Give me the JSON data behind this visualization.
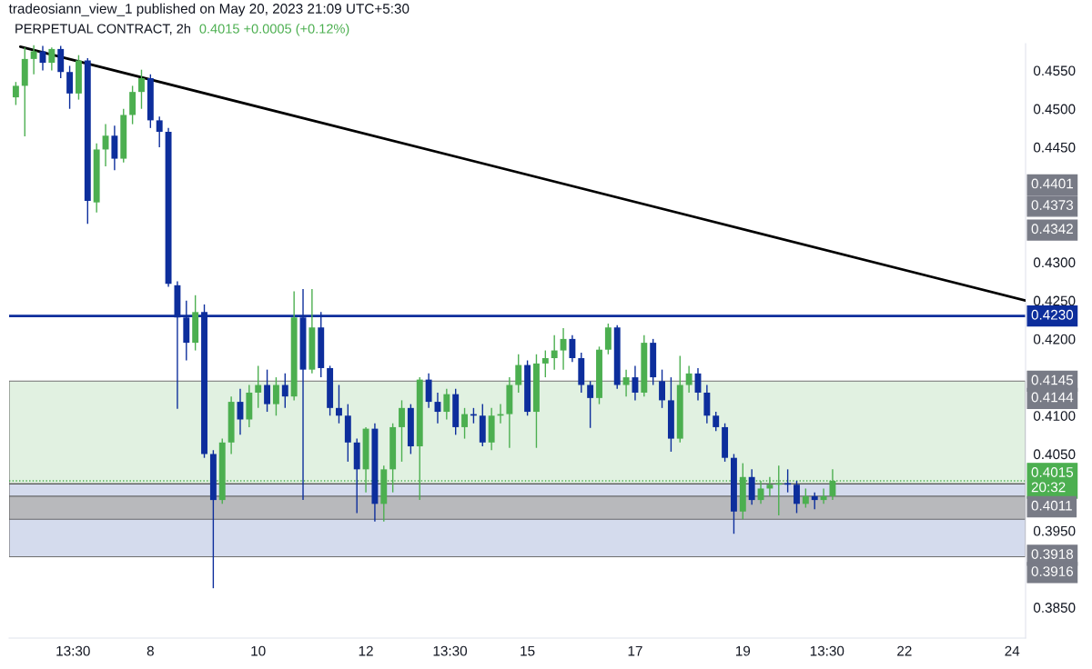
{
  "chart_data": {
    "type": "candlestick",
    "title": "PERPETUAL CONTRACT, 2h",
    "subtitle": "tradeosiann_view_1 published on May 20, 2023 21:09 UTC+5:30",
    "x": [
      "2023-05-05T12:00",
      "2023-05-05T16:00",
      "2023-05-05T20:00",
      "2023-05-06T00:00",
      "2023-05-06T04:00",
      "2023-05-06T08:00",
      "2023-05-06T12:00",
      "2023-05-06T16:00",
      "2023-05-06T20:00",
      "2023-05-07T00:00",
      "2023-05-07T04:00",
      "2023-05-07T08:00",
      "2023-05-07T12:00",
      "2023-05-07T16:00",
      "2023-05-07T20:00",
      "2023-05-08T00:00",
      "2023-05-08T04:00",
      "2023-05-08T08:00",
      "2023-05-08T12:00",
      "2023-05-08T16:00",
      "2023-05-08T20:00",
      "2023-05-09T00:00",
      "2023-05-09T04:00",
      "2023-05-09T08:00",
      "2023-05-09T12:00",
      "2023-05-09T16:00",
      "2023-05-09T20:00",
      "2023-05-10T00:00",
      "2023-05-10T04:00",
      "2023-05-10T08:00",
      "2023-05-10T12:00",
      "2023-05-10T16:00",
      "2023-05-10T20:00",
      "2023-05-11T00:00",
      "2023-05-11T04:00",
      "2023-05-11T08:00",
      "2023-05-11T12:00",
      "2023-05-11T16:00",
      "2023-05-11T20:00",
      "2023-05-12T00:00",
      "2023-05-12T04:00",
      "2023-05-12T08:00",
      "2023-05-12T12:00",
      "2023-05-12T16:00",
      "2023-05-12T20:00",
      "2023-05-13T00:00",
      "2023-05-13T04:00",
      "2023-05-13T08:00",
      "2023-05-13T12:00",
      "2023-05-13T16:00",
      "2023-05-13T20:00",
      "2023-05-14T00:00",
      "2023-05-14T04:00",
      "2023-05-14T08:00",
      "2023-05-14T12:00",
      "2023-05-14T16:00",
      "2023-05-14T20:00",
      "2023-05-15T00:00",
      "2023-05-15T04:00",
      "2023-05-15T08:00",
      "2023-05-15T12:00",
      "2023-05-15T16:00",
      "2023-05-15T20:00",
      "2023-05-16T00:00",
      "2023-05-16T04:00",
      "2023-05-16T08:00",
      "2023-05-16T12:00",
      "2023-05-16T16:00",
      "2023-05-16T20:00",
      "2023-05-17T00:00",
      "2023-05-17T04:00",
      "2023-05-17T08:00",
      "2023-05-17T12:00",
      "2023-05-17T16:00",
      "2023-05-17T20:00",
      "2023-05-18T00:00",
      "2023-05-18T04:00",
      "2023-05-18T08:00",
      "2023-05-18T12:00",
      "2023-05-18T16:00",
      "2023-05-18T20:00",
      "2023-05-19T00:00",
      "2023-05-19T04:00",
      "2023-05-19T08:00",
      "2023-05-19T12:00",
      "2023-05-19T16:00",
      "2023-05-19T20:00",
      "2023-05-20T00:00",
      "2023-05-20T04:00",
      "2023-05-20T08:00",
      "2023-05-20T12:00",
      "2023-05-20T16:00"
    ],
    "ohlc": [
      [
        0.4515,
        0.4535,
        0.4505,
        0.453
      ],
      [
        0.453,
        0.458,
        0.4464,
        0.4565
      ],
      [
        0.4565,
        0.4583,
        0.4545,
        0.4575
      ],
      [
        0.4575,
        0.4582,
        0.455,
        0.456
      ],
      [
        0.456,
        0.458,
        0.455,
        0.4578
      ],
      [
        0.4578,
        0.4582,
        0.454,
        0.4548
      ],
      [
        0.4548,
        0.4556,
        0.45,
        0.452
      ],
      [
        0.452,
        0.457,
        0.4512,
        0.4563
      ],
      [
        0.4563,
        0.4566,
        0.435,
        0.438
      ],
      [
        0.4378,
        0.4455,
        0.4365,
        0.4447
      ],
      [
        0.4447,
        0.448,
        0.4425,
        0.4465
      ],
      [
        0.4465,
        0.4478,
        0.442,
        0.4435
      ],
      [
        0.4435,
        0.45,
        0.443,
        0.4492
      ],
      [
        0.4492,
        0.453,
        0.448,
        0.4522
      ],
      [
        0.4522,
        0.4551,
        0.45,
        0.454
      ],
      [
        0.454,
        0.4545,
        0.4475,
        0.4485
      ],
      [
        0.4485,
        0.449,
        0.445,
        0.447
      ],
      [
        0.447,
        0.4475,
        0.4268,
        0.4272
      ],
      [
        0.427,
        0.4275,
        0.4109,
        0.4228
      ],
      [
        0.4228,
        0.425,
        0.4172,
        0.4195
      ],
      [
        0.4195,
        0.4257,
        0.4185,
        0.4235
      ],
      [
        0.4235,
        0.4245,
        0.4045,
        0.405
      ],
      [
        0.405,
        0.4055,
        0.3875,
        0.399
      ],
      [
        0.399,
        0.407,
        0.3985,
        0.4065
      ],
      [
        0.4065,
        0.4125,
        0.405,
        0.4118
      ],
      [
        0.4118,
        0.4135,
        0.4075,
        0.4095
      ],
      [
        0.4095,
        0.414,
        0.4085,
        0.413
      ],
      [
        0.413,
        0.4165,
        0.411,
        0.414
      ],
      [
        0.414,
        0.416,
        0.4105,
        0.4115
      ],
      [
        0.4115,
        0.415,
        0.41,
        0.414
      ],
      [
        0.414,
        0.4155,
        0.411,
        0.4125
      ],
      [
        0.4125,
        0.4262,
        0.412,
        0.4228
      ],
      [
        0.4228,
        0.4265,
        0.399,
        0.416
      ],
      [
        0.416,
        0.4265,
        0.4155,
        0.4215
      ],
      [
        0.4215,
        0.4235,
        0.415,
        0.4162
      ],
      [
        0.4162,
        0.4165,
        0.41,
        0.411
      ],
      [
        0.411,
        0.414,
        0.409,
        0.41
      ],
      [
        0.41,
        0.4115,
        0.404,
        0.4065
      ],
      [
        0.4065,
        0.407,
        0.3973,
        0.403
      ],
      [
        0.403,
        0.4085,
        0.4,
        0.4083
      ],
      [
        0.4083,
        0.409,
        0.3962,
        0.3985
      ],
      [
        0.3985,
        0.4035,
        0.3962,
        0.403
      ],
      [
        0.403,
        0.409,
        0.4,
        0.4085
      ],
      [
        0.4085,
        0.412,
        0.404,
        0.411
      ],
      [
        0.411,
        0.4115,
        0.405,
        0.406
      ],
      [
        0.406,
        0.415,
        0.399,
        0.4147
      ],
      [
        0.4147,
        0.4155,
        0.411,
        0.4118
      ],
      [
        0.4118,
        0.413,
        0.409,
        0.4105
      ],
      [
        0.4105,
        0.4135,
        0.4095,
        0.4128
      ],
      [
        0.4128,
        0.4135,
        0.4075,
        0.4085
      ],
      [
        0.4085,
        0.411,
        0.407,
        0.4102
      ],
      [
        0.4102,
        0.411,
        0.409,
        0.41
      ],
      [
        0.41,
        0.4115,
        0.406,
        0.4065
      ],
      [
        0.4065,
        0.411,
        0.4055,
        0.41
      ],
      [
        0.41,
        0.4115,
        0.409,
        0.4102
      ],
      [
        0.4102,
        0.415,
        0.4058,
        0.414
      ],
      [
        0.414,
        0.418,
        0.413,
        0.4166
      ],
      [
        0.4166,
        0.4172,
        0.41,
        0.4105
      ],
      [
        0.4105,
        0.418,
        0.4058,
        0.4168
      ],
      [
        0.4168,
        0.4185,
        0.415,
        0.4175
      ],
      [
        0.4175,
        0.4205,
        0.416,
        0.4185
      ],
      [
        0.4185,
        0.4214,
        0.416,
        0.42
      ],
      [
        0.42,
        0.4205,
        0.417,
        0.4175
      ],
      [
        0.4175,
        0.4182,
        0.413,
        0.414
      ],
      [
        0.414,
        0.4145,
        0.4084,
        0.4123
      ],
      [
        0.4123,
        0.419,
        0.4115,
        0.4186
      ],
      [
        0.4186,
        0.422,
        0.418,
        0.4215
      ],
      [
        0.4215,
        0.4218,
        0.4135,
        0.414
      ],
      [
        0.414,
        0.416,
        0.4125,
        0.415
      ],
      [
        0.415,
        0.4165,
        0.412,
        0.413
      ],
      [
        0.413,
        0.4205,
        0.4125,
        0.4195
      ],
      [
        0.4195,
        0.42,
        0.414,
        0.415
      ],
      [
        0.4145,
        0.416,
        0.411,
        0.412
      ],
      [
        0.412,
        0.415,
        0.4053,
        0.407
      ],
      [
        0.407,
        0.4178,
        0.4065,
        0.414
      ],
      [
        0.414,
        0.4165,
        0.413,
        0.4155
      ],
      [
        0.4155,
        0.4162,
        0.412,
        0.413
      ],
      [
        0.413,
        0.414,
        0.409,
        0.41
      ],
      [
        0.41,
        0.4105,
        0.408,
        0.4085
      ],
      [
        0.4085,
        0.409,
        0.404,
        0.4045
      ],
      [
        0.4045,
        0.405,
        0.3946,
        0.3975
      ],
      [
        0.3975,
        0.4038,
        0.3965,
        0.402
      ],
      [
        0.402,
        0.403,
        0.3984,
        0.399
      ],
      [
        0.399,
        0.4015,
        0.3985,
        0.4005
      ],
      [
        0.4005,
        0.402,
        0.3995,
        0.401
      ],
      [
        0.401,
        0.4035,
        0.397,
        0.4012
      ],
      [
        0.4012,
        0.403,
        0.4,
        0.401
      ],
      [
        0.401,
        0.4015,
        0.3973,
        0.3985
      ],
      [
        0.3985,
        0.4005,
        0.398,
        0.3995
      ],
      [
        0.3995,
        0.4,
        0.3978,
        0.399
      ],
      [
        0.399,
        0.4005,
        0.3985,
        0.3995
      ],
      [
        0.3995,
        0.403,
        0.399,
        0.4015
      ]
    ],
    "colors": [
      "#4caf50",
      "#4caf50",
      "#4caf50",
      "#0d2e9c",
      "#4caf50",
      "#0d2e9c",
      "#0d2e9c",
      "#4caf50",
      "#0d2e9c",
      "#4caf50",
      "#4caf50",
      "#0d2e9c",
      "#4caf50",
      "#4caf50",
      "#4caf50",
      "#0d2e9c",
      "#0d2e9c",
      "#0d2e9c",
      "#0d2e9c",
      "#0d2e9c",
      "#4caf50",
      "#0d2e9c",
      "#0d2e9c",
      "#4caf50",
      "#4caf50",
      "#0d2e9c",
      "#4caf50",
      "#4caf50",
      "#0d2e9c",
      "#4caf50",
      "#0d2e9c",
      "#4caf50",
      "#0d2e9c",
      "#4caf50",
      "#0d2e9c",
      "#0d2e9c",
      "#0d2e9c",
      "#0d2e9c",
      "#0d2e9c",
      "#4caf50",
      "#0d2e9c",
      "#4caf50",
      "#4caf50",
      "#4caf50",
      "#0d2e9c",
      "#4caf50",
      "#0d2e9c",
      "#0d2e9c",
      "#4caf50",
      "#0d2e9c",
      "#4caf50",
      "#0d2e9c",
      "#0d2e9c",
      "#4caf50",
      "#4caf50",
      "#4caf50",
      "#4caf50",
      "#0d2e9c",
      "#4caf50",
      "#4caf50",
      "#4caf50",
      "#4caf50",
      "#0d2e9c",
      "#0d2e9c",
      "#0d2e9c",
      "#4caf50",
      "#4caf50",
      "#0d2e9c",
      "#4caf50",
      "#0d2e9c",
      "#4caf50",
      "#0d2e9c",
      "#0d2e9c",
      "#0d2e9c",
      "#4caf50",
      "#4caf50",
      "#0d2e9c",
      "#0d2e9c",
      "#0d2e9c",
      "#0d2e9c",
      "#0d2e9c",
      "#4caf50",
      "#0d2e9c",
      "#4caf50",
      "#4caf50",
      "#4caf50",
      "#0d2e9c",
      "#0d2e9c",
      "#4caf50",
      "#0d2e9c",
      "#4caf50",
      "#4caf50"
    ],
    "series": [
      {
        "type": "line",
        "color": "#000000",
        "x": [
          "2023-05-05T14:00",
          "2023-05-24T06:00"
        ],
        "values": [
          0.4581,
          0.425
        ]
      }
    ],
    "xlim": [
      "2023-05-05T09:00",
      "2023-05-24T06:00"
    ],
    "xticks": [
      {
        "value": "2023-05-06T13:30",
        "label": "13:30"
      },
      {
        "value": "2023-05-08",
        "label": "8"
      },
      {
        "value": "2023-05-10",
        "label": "10"
      },
      {
        "value": "2023-05-12",
        "label": "12"
      },
      {
        "value": "2023-05-13T13:30",
        "label": "13:30"
      },
      {
        "value": "2023-05-15",
        "label": "15"
      },
      {
        "value": "2023-05-17",
        "label": "17"
      },
      {
        "value": "2023-05-19",
        "label": "19"
      },
      {
        "value": "2023-05-20T13:30",
        "label": "13:30"
      },
      {
        "value": "2023-05-22",
        "label": "22"
      },
      {
        "value": "2023-05-24",
        "label": "24"
      }
    ],
    "ylim": [
      0.381,
      0.4585
    ],
    "yticks": [
      {
        "value": 0.385,
        "label": "0.3850"
      },
      {
        "value": 0.395,
        "label": "0.3950"
      },
      {
        "value": 0.405,
        "label": "0.4050"
      },
      {
        "value": 0.41,
        "label": "0.4100"
      },
      {
        "value": 0.42,
        "label": "0.4200"
      },
      {
        "value": 0.425,
        "label": "0.4250"
      },
      {
        "value": 0.43,
        "label": "0.4300"
      },
      {
        "value": 0.445,
        "label": "0.4450"
      },
      {
        "value": 0.45,
        "label": "0.4500"
      },
      {
        "value": 0.455,
        "label": "0.4550"
      }
    ],
    "ref_lines": [
      {
        "axis": "y",
        "value": 0.423,
        "label": "0.4230",
        "color": "#0d2e9c",
        "line_style": "solid"
      },
      {
        "axis": "y",
        "value": 0.4015,
        "label": "0.4015\n20:32",
        "color": "#4caf50",
        "line_style": "dotted"
      }
    ],
    "bands": [
      {
        "axis": "y",
        "from": 0.4011,
        "to": 0.4145,
        "color": "#dcefdc"
      },
      {
        "axis": "y",
        "from": 0.3916,
        "to": 0.4011,
        "color": "#cdd5ea"
      },
      {
        "axis": "y",
        "from": 0.3965,
        "to": 0.3995,
        "color": "#b4b4b4"
      }
    ],
    "annotations": [
      "0.4015 +0.0005 (+0.12%)",
      "0.4401",
      "0.4373",
      "0.4342",
      "0.4145",
      "0.4144",
      "0.4011",
      "0.3918",
      "0.3916"
    ],
    "grid": false,
    "legend": false
  }
}
